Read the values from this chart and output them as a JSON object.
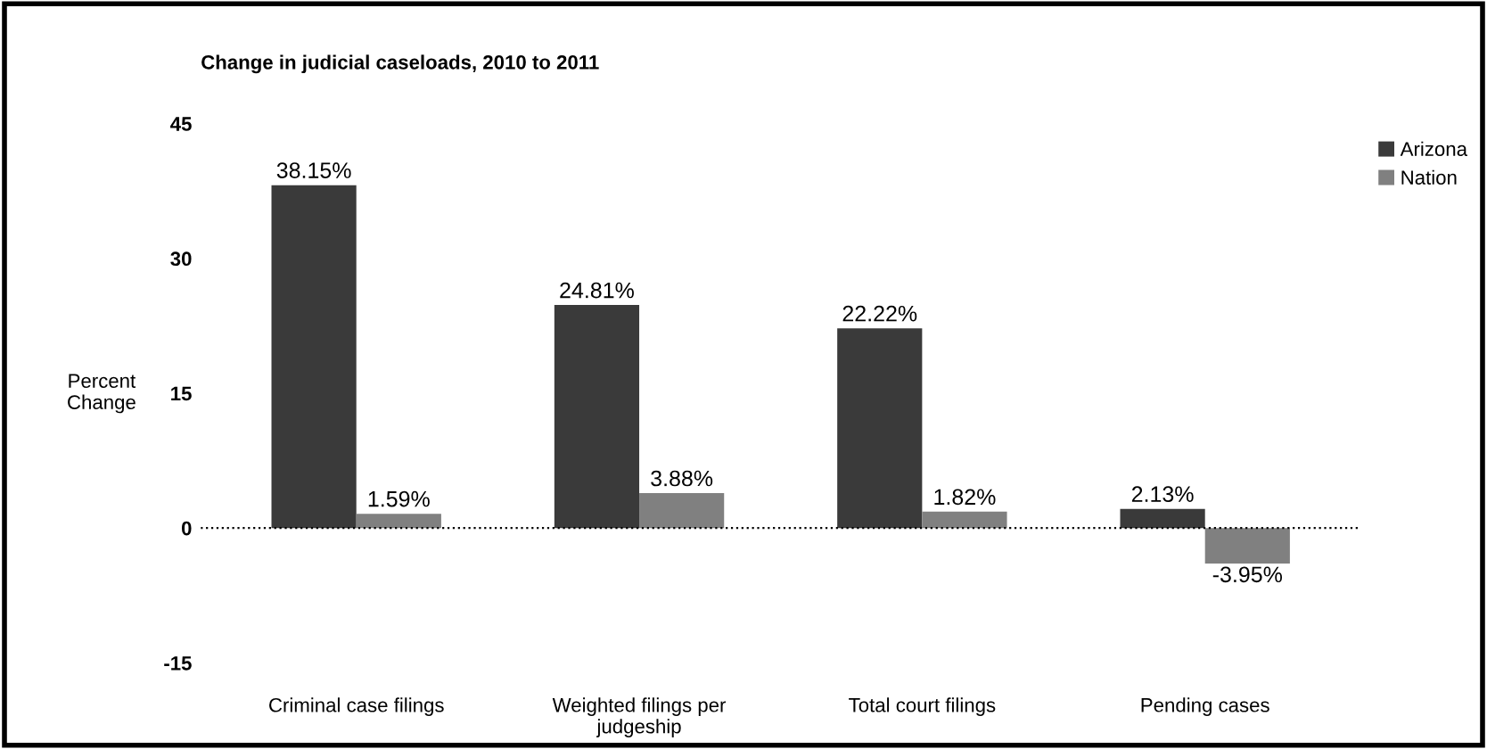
{
  "chart_data": {
    "type": "bar",
    "title": "Change in judicial caseloads, 2010 to 2011",
    "ylabel": "Percent\nChange",
    "categories": [
      "Criminal case filings",
      "Weighted filings per\njudgeship",
      "Total court filings",
      "Pending cases"
    ],
    "series": [
      {
        "name": "Arizona",
        "color": "#3a3a3a",
        "values": [
          38.15,
          24.81,
          22.22,
          2.13
        ],
        "value_labels": [
          "38.15%",
          "24.81%",
          "22.22%",
          "2.13%"
        ]
      },
      {
        "name": "Nation",
        "color": "#808080",
        "values": [
          1.59,
          3.88,
          1.82,
          -3.95
        ],
        "value_labels": [
          "1.59%",
          "3.88%",
          "1.82%",
          "-3.95%"
        ]
      }
    ],
    "ylim": [
      -15,
      45
    ],
    "yticks": [
      -15,
      0,
      15,
      30,
      45
    ],
    "grid": false,
    "legend": "top right",
    "ref_lines": [
      {
        "axis": "y",
        "value": 0,
        "line_style": "dotted",
        "color": "#000000"
      }
    ]
  }
}
